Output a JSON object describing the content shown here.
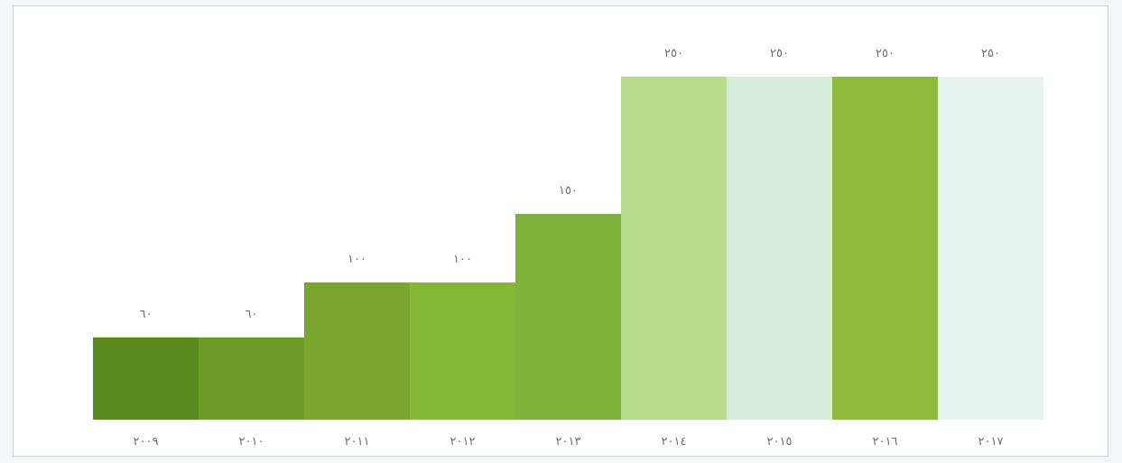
{
  "chart_data": {
    "type": "bar",
    "title": "",
    "xlabel": "",
    "ylabel": "",
    "categories": [
      "٢٠٠٩",
      "٢٠١٠",
      "٢٠١١",
      "٢٠١٢",
      "٢٠١٣",
      "٢٠١٤",
      "٢٠١٥",
      "٢٠١٦",
      "٢٠١٧"
    ],
    "values": [
      60,
      60,
      100,
      100,
      150,
      250,
      250,
      250,
      250
    ],
    "value_labels": [
      "٦٠",
      "٦٠",
      "١٠٠",
      "١٠٠",
      "١٥٠",
      "٢٥٠",
      "٢٥٠",
      "٢٥٠",
      "٢٥٠"
    ],
    "ylim": [
      0,
      250
    ],
    "grid": false,
    "legend": "none",
    "colors": [
      "#5b8a1f",
      "#6d9b2a",
      "#7aa52f",
      "#86b838",
      "#7fb23a",
      "#b6dd8e",
      "#d5ecd9",
      "#8dbc3c",
      "#e4f3ee"
    ]
  }
}
